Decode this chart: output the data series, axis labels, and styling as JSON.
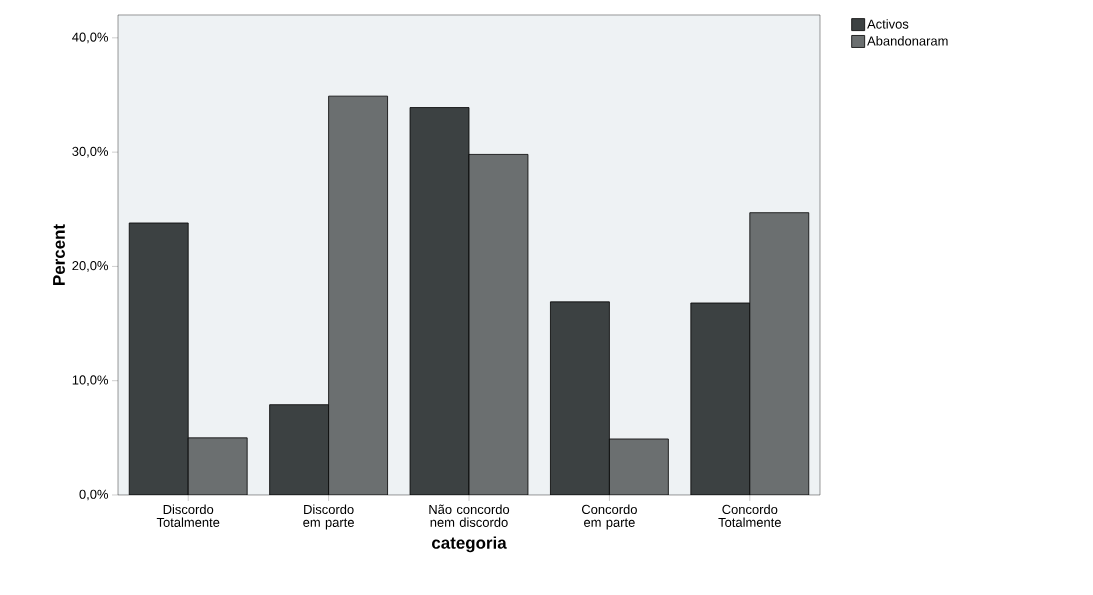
{
  "chart_data": {
    "type": "bar",
    "xlabel": "categoria",
    "ylabel": "Percent",
    "categories": [
      "Discordo Totalmente",
      "Discordo em parte",
      "Não concordo nem discordo",
      "Concordo em parte",
      "Concordo Totalmente"
    ],
    "series": [
      {
        "name": "Activos",
        "color": "#3c4142",
        "values": [
          23.8,
          7.9,
          33.9,
          16.9,
          16.8
        ]
      },
      {
        "name": "Abandonaram",
        "color": "#6b6f70",
        "values": [
          5.0,
          34.9,
          29.8,
          4.9,
          24.7
        ]
      }
    ],
    "ylim": [
      0,
      42
    ],
    "yticks": [
      {
        "value": 0,
        "label": "0,0%"
      },
      {
        "value": 10,
        "label": "10,0%"
      },
      {
        "value": 20,
        "label": "20,0%"
      },
      {
        "value": 30,
        "label": "30,0%"
      },
      {
        "value": 40,
        "label": "40,0%"
      }
    ],
    "legend": "top right",
    "grid": false
  }
}
